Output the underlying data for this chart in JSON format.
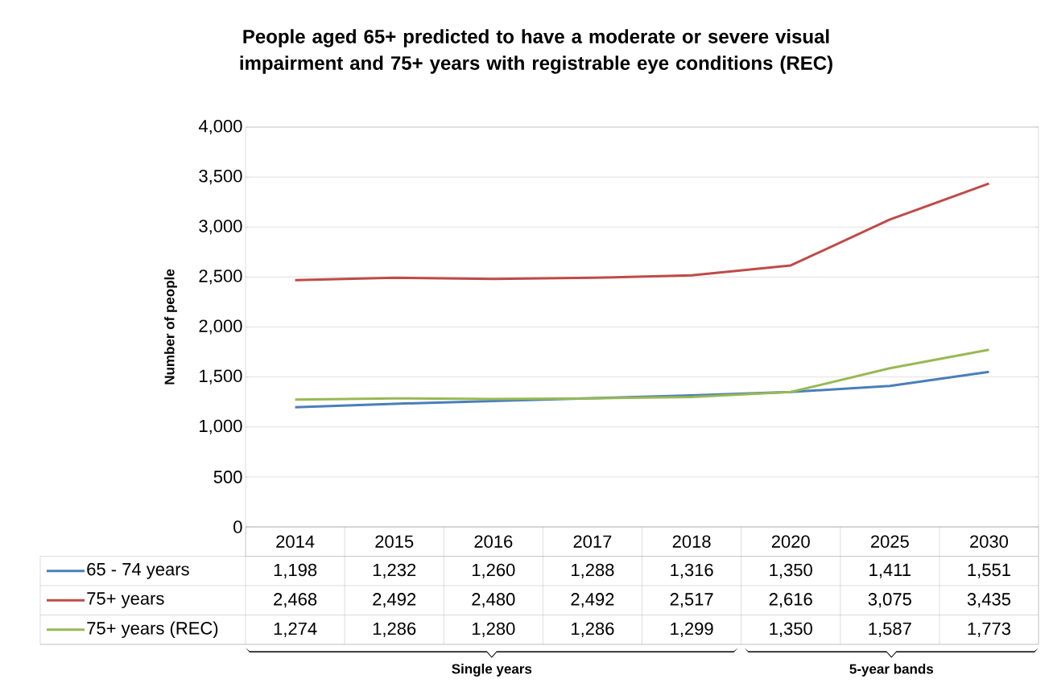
{
  "chart_data": {
    "type": "line",
    "title": "People aged 65+ predicted to have a moderate or severe visual impairment and 75+ years with registrable eye conditions (REC)",
    "ylabel": "Number of people",
    "categories": [
      "2014",
      "2015",
      "2016",
      "2017",
      "2018",
      "2020",
      "2025",
      "2030"
    ],
    "series": [
      {
        "name": "65 - 74 years",
        "color": "#4a7ebb",
        "values": [
          1198,
          1232,
          1260,
          1288,
          1316,
          1350,
          1411,
          1551
        ],
        "value_labels": [
          "1,198",
          "1,232",
          "1,260",
          "1,288",
          "1,316",
          "1,350",
          "1,411",
          "1,551"
        ]
      },
      {
        "name": "75+ years",
        "color": "#be4b48",
        "values": [
          2468,
          2492,
          2480,
          2492,
          2517,
          2616,
          3075,
          3435
        ],
        "value_labels": [
          "2,468",
          "2,492",
          "2,480",
          "2,492",
          "2,517",
          "2,616",
          "3,075",
          "3,435"
        ]
      },
      {
        "name": "75+ years (REC)",
        "color": "#98b954",
        "values": [
          1274,
          1286,
          1280,
          1286,
          1299,
          1350,
          1587,
          1773
        ],
        "value_labels": [
          "1,274",
          "1,286",
          "1,280",
          "1,286",
          "1,299",
          "1,350",
          "1,587",
          "1,773"
        ]
      }
    ],
    "ylim": [
      0,
      4000
    ],
    "yticks": [
      0,
      500,
      {
        "value": 1000,
        "label": "1,000"
      },
      {
        "value": 1500,
        "label": "1,500"
      },
      {
        "value": 2000,
        "label": "2,000"
      },
      {
        "value": 2500,
        "label": "2,500"
      },
      {
        "value": 3000,
        "label": "3,000"
      },
      {
        "value": 3500,
        "label": "3,500"
      },
      {
        "value": 4000,
        "label": "4,000"
      }
    ],
    "grid": "y",
    "legend": "bottom",
    "annotations": [
      "Single years",
      "5-year bands"
    ]
  }
}
